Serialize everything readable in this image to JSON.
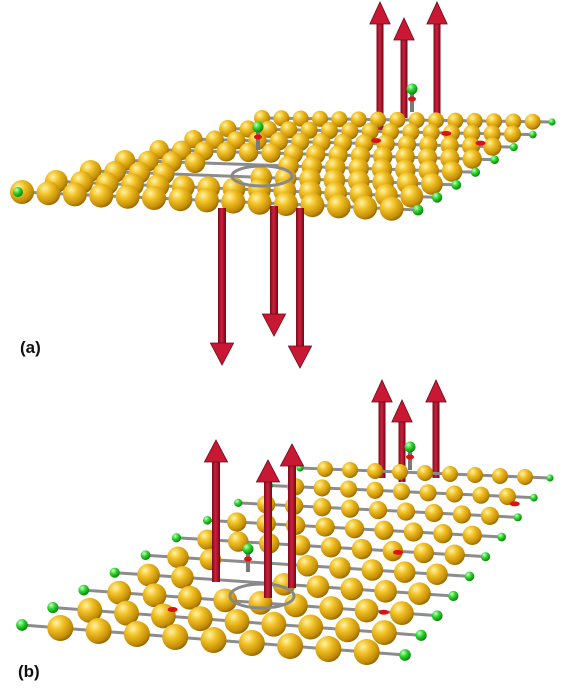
{
  "panels": [
    {
      "id": "a",
      "label": "(a)"
    },
    {
      "id": "b",
      "label": "(b)"
    }
  ],
  "colors": {
    "atom_gold": "#d9a514",
    "atom_gold_light": "#fff0a0",
    "atom_gold_dark": "#8a6200",
    "edge_atom_green": "#22cc22",
    "bond_gray": "#8c8c8c",
    "arrow_red": "#b0102a",
    "arrow_red_dark": "#6e0818",
    "marker_red": "#dd1111"
  },
  "icons": [
    "gold-atom-sphere",
    "green-edge-atom-sphere",
    "red-vector-arrow"
  ]
}
